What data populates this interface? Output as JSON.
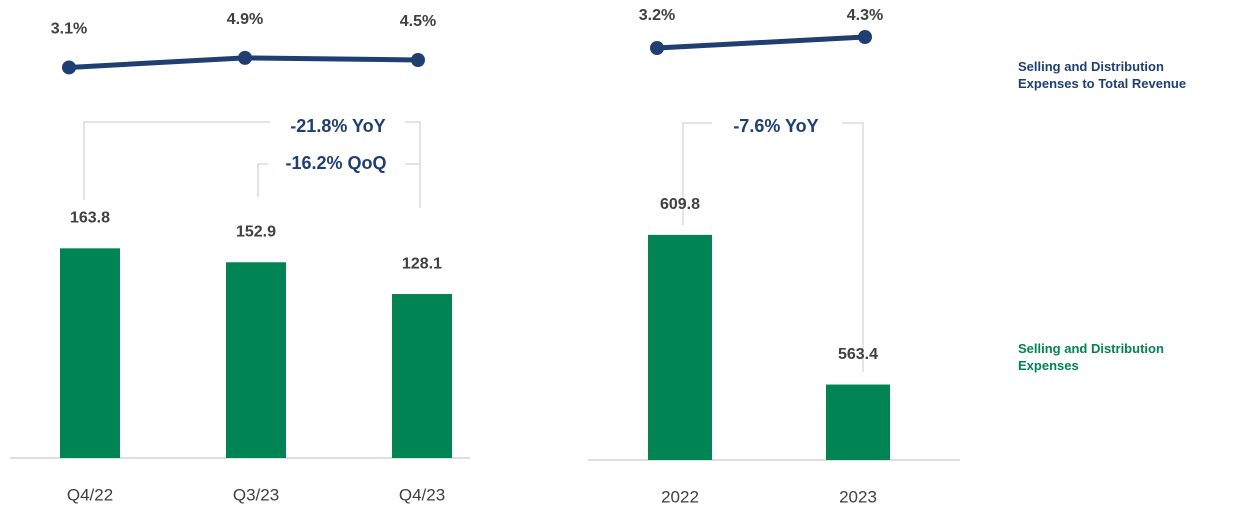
{
  "legend": [
    {
      "name": "Selling and Distribution Expenses to Total Revenue",
      "color": "#1f3f73"
    },
    {
      "name": "Selling and Distribution Expenses",
      "color": "#008453"
    }
  ],
  "chart_data": [
    {
      "type": "bar_line",
      "categories": [
        "Q4/22",
        "Q3/23",
        "Q4/23"
      ],
      "bars": {
        "values": [
          163.8,
          152.9,
          128.1
        ]
      },
      "ylim": [
        0,
        200
      ],
      "line": {
        "values": [
          3.1,
          4.9,
          4.5
        ],
        "value_labels": [
          "3.1%",
          "4.9%",
          "4.5%"
        ]
      },
      "y2lim": [
        -3,
        12
      ],
      "annotations": [
        "-21.8% YoY",
        "-16.2% QoQ"
      ]
    },
    {
      "type": "bar_line",
      "categories": [
        "2022",
        "2023"
      ],
      "bars": {
        "values": [
          609.8,
          563.4
        ]
      },
      "ylim": [
        540,
        620
      ],
      "line": {
        "values": [
          3.2,
          4.3
        ],
        "value_labels": [
          "3.2%",
          "4.3%"
        ]
      },
      "y2lim": [
        -2,
        6
      ],
      "annotations": [
        "-7.6% YoY"
      ]
    }
  ]
}
